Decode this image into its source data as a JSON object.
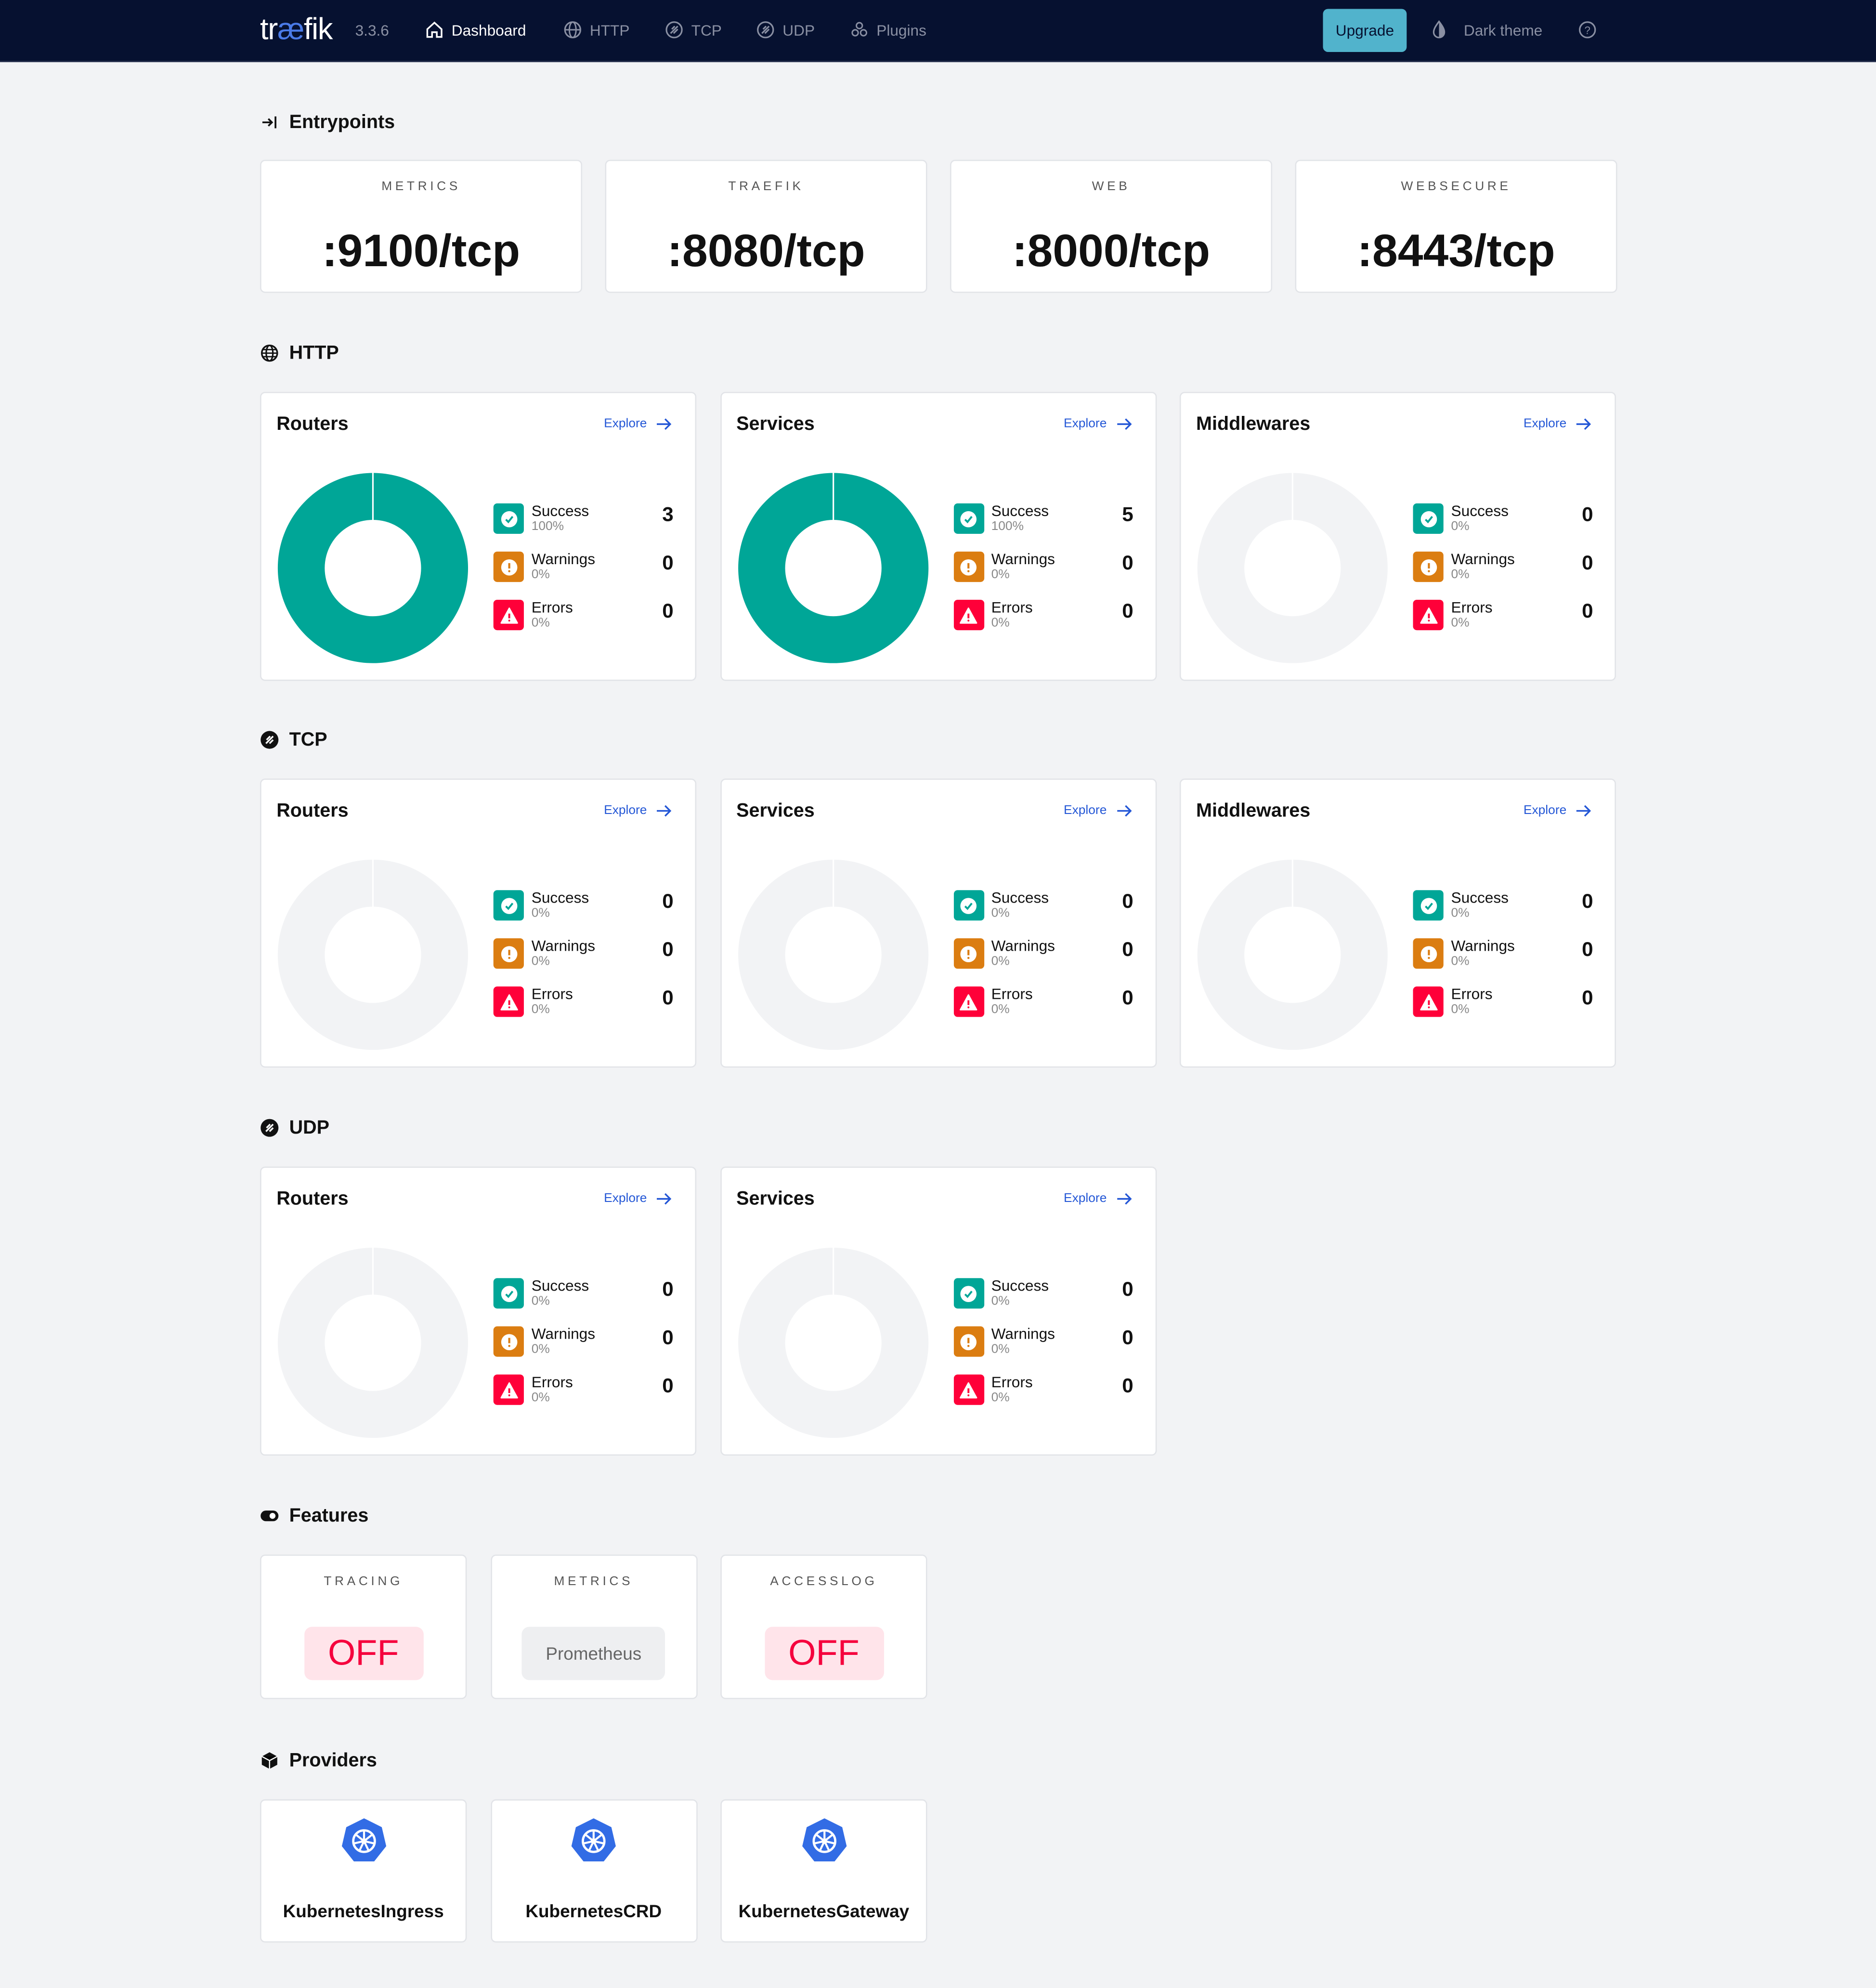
{
  "nav": {
    "logo": "træfik",
    "version": "3.3.6",
    "items": [
      {
        "label": "Dashboard",
        "icon": "home-icon",
        "active": true
      },
      {
        "label": "HTTP",
        "icon": "globe-icon"
      },
      {
        "label": "TCP",
        "icon": "tcp-icon"
      },
      {
        "label": "UDP",
        "icon": "udp-icon"
      },
      {
        "label": "Plugins",
        "icon": "plugins-icon"
      }
    ],
    "upgrade": "Upgrade",
    "theme": "Dark theme"
  },
  "colors": {
    "success": "#00a697",
    "warning": "#db7d11",
    "error": "#ff0039",
    "empty": "#f2f3f5",
    "accent": "#2457d6",
    "navbar": "#061130"
  },
  "entrypoints": {
    "title": "Entrypoints",
    "items": [
      {
        "name": "METRICS",
        "value": ":9100/tcp"
      },
      {
        "name": "TRAEFIK",
        "value": ":8080/tcp"
      },
      {
        "name": "WEB",
        "value": ":8000/tcp"
      },
      {
        "name": "WEBSECURE",
        "value": ":8443/tcp"
      }
    ]
  },
  "explore_label": "Explore",
  "legend_labels": {
    "success": "Success",
    "warnings": "Warnings",
    "errors": "Errors"
  },
  "sections": [
    {
      "title": "HTTP",
      "icon": "globe-icon",
      "cards": [
        {
          "title": "Routers",
          "success": 3,
          "success_pct": "100%",
          "warnings": 0,
          "warnings_pct": "0%",
          "errors": 0,
          "errors_pct": "0%"
        },
        {
          "title": "Services",
          "success": 5,
          "success_pct": "100%",
          "warnings": 0,
          "warnings_pct": "0%",
          "errors": 0,
          "errors_pct": "0%"
        },
        {
          "title": "Middlewares",
          "success": 0,
          "success_pct": "0%",
          "warnings": 0,
          "warnings_pct": "0%",
          "errors": 0,
          "errors_pct": "0%"
        }
      ]
    },
    {
      "title": "TCP",
      "icon": "tcp-icon",
      "cards": [
        {
          "title": "Routers",
          "success": 0,
          "success_pct": "0%",
          "warnings": 0,
          "warnings_pct": "0%",
          "errors": 0,
          "errors_pct": "0%"
        },
        {
          "title": "Services",
          "success": 0,
          "success_pct": "0%",
          "warnings": 0,
          "warnings_pct": "0%",
          "errors": 0,
          "errors_pct": "0%"
        },
        {
          "title": "Middlewares",
          "success": 0,
          "success_pct": "0%",
          "warnings": 0,
          "warnings_pct": "0%",
          "errors": 0,
          "errors_pct": "0%"
        }
      ]
    },
    {
      "title": "UDP",
      "icon": "udp-icon",
      "cards": [
        {
          "title": "Routers",
          "success": 0,
          "success_pct": "0%",
          "warnings": 0,
          "warnings_pct": "0%",
          "errors": 0,
          "errors_pct": "0%"
        },
        {
          "title": "Services",
          "success": 0,
          "success_pct": "0%",
          "warnings": 0,
          "warnings_pct": "0%",
          "errors": 0,
          "errors_pct": "0%"
        }
      ]
    }
  ],
  "features": {
    "title": "Features",
    "items": [
      {
        "name": "TRACING",
        "value": "OFF",
        "state": "off"
      },
      {
        "name": "METRICS",
        "value": "Prometheus",
        "state": "on"
      },
      {
        "name": "ACCESSLOG",
        "value": "OFF",
        "state": "off"
      }
    ]
  },
  "providers": {
    "title": "Providers",
    "items": [
      {
        "name": "KubernetesIngress",
        "icon": "kubernetes-icon"
      },
      {
        "name": "KubernetesCRD",
        "icon": "kubernetes-icon"
      },
      {
        "name": "KubernetesGateway",
        "icon": "kubernetes-icon"
      }
    ]
  }
}
